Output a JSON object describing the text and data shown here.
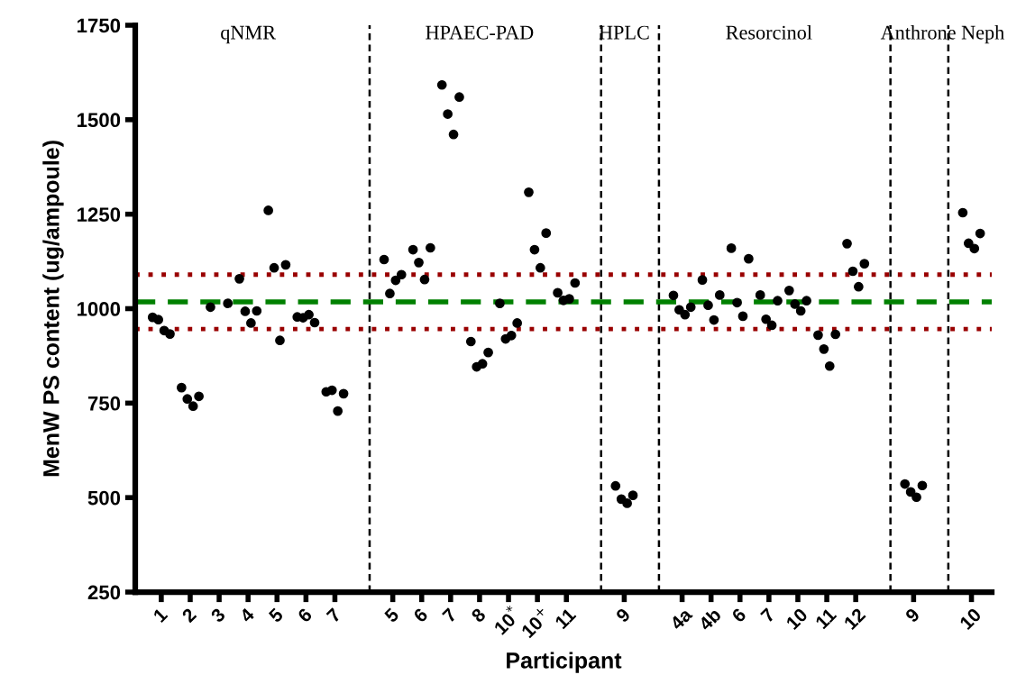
{
  "chart_data": {
    "type": "scatter",
    "xlabel": "Participant",
    "ylabel": "MenW PS content (ug/ampoule)",
    "ylim": [
      250,
      1750
    ],
    "yticks": [
      250,
      500,
      750,
      1000,
      1250,
      1500,
      1750
    ],
    "categories": [
      "1",
      "2",
      "3",
      "4",
      "5",
      "6",
      "7",
      null,
      "5",
      "6",
      "7",
      "8",
      "10$^{*}$",
      "10$^{+}$",
      "11",
      null,
      "9",
      null,
      "4a",
      "4b",
      "6",
      "7",
      "10",
      "11",
      "12",
      null,
      "9",
      null,
      "10"
    ],
    "grid": false,
    "legend": false,
    "marker": "circle",
    "series": [
      {
        "color": "#000000",
        "values": [
          977,
          791,
          1004,
          1079,
          1260,
          978,
          780,
          null,
          1130,
          1156,
          1592,
          913,
          1014,
          1308,
          1042,
          null,
          531,
          null,
          1035,
          1076,
          1160,
          1036,
          1048,
          930,
          1172,
          null,
          536,
          null,
          1254
        ]
      },
      {
        "color": "#000000",
        "values": [
          933,
          768,
          1014,
          994,
          1116,
          963,
          775,
          null,
          1090,
          1161,
          1560,
          884,
          962,
          1200,
          1068,
          null,
          506,
          null,
          1004,
          1036,
          1132,
          1021,
          1021,
          932,
          1119,
          null,
          532,
          null,
          1199
        ]
      },
      {
        "color": "#000000",
        "values": [
          971,
          761,
          null,
          993,
          1108,
          976,
          784,
          null,
          1040,
          1122,
          1515,
          846,
          920,
          1156,
          1022,
          null,
          496,
          null,
          997,
          1009,
          1016,
          972,
          1012,
          893,
          1099,
          null,
          515,
          null,
          1173
        ]
      },
      {
        "color": "#000000",
        "values": [
          942,
          742,
          null,
          962,
          916,
          984,
          729,
          null,
          1075,
          1077,
          1461,
          854,
          929,
          1108,
          1026,
          null,
          485,
          null,
          984,
          970,
          980,
          956,
          994,
          848,
          1058,
          null,
          501,
          null,
          1159
        ]
      }
    ],
    "ref_lines": [
      {
        "axis": "y",
        "value": 1018,
        "color": "#008000",
        "line_style": "dashed"
      },
      {
        "axis": "y",
        "value": 1090,
        "color": "#990000",
        "line_style": "dotted"
      },
      {
        "axis": "y",
        "value": 946,
        "color": "#990000",
        "line_style": "dotted"
      }
    ],
    "annotations": [
      "qNMR",
      "HPAEC-PAD",
      "HPLC",
      "Resorcinol",
      "Anthrone Neph"
    ]
  }
}
